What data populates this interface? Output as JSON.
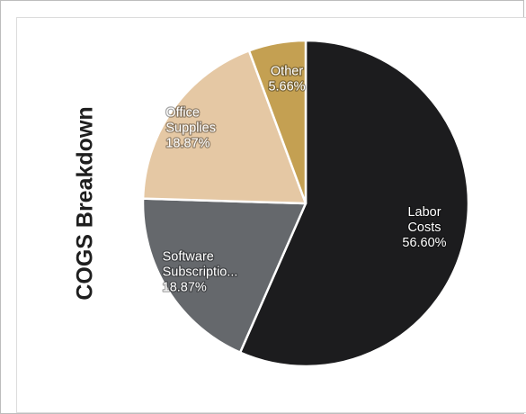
{
  "chart_data": {
    "type": "pie",
    "title": "COGS Breakdown",
    "slices": [
      {
        "label": [
          "Labor",
          "Costs"
        ],
        "value": 56.6,
        "value_label": "56.60%",
        "color": "#1c1c1e"
      },
      {
        "label": [
          "Software",
          "Subscriptio..."
        ],
        "value": 18.87,
        "value_label": "18.87%",
        "color": "#65686c"
      },
      {
        "label": [
          "Office",
          "Supplies"
        ],
        "value": 18.87,
        "value_label": "18.87%",
        "color": "#e5c8a4"
      },
      {
        "label": [
          "Other"
        ],
        "value": 5.66,
        "value_label": "5.66%",
        "color": "#c4a052"
      }
    ],
    "start_angle": "12 o'clock",
    "direction": "clockwise",
    "legend": "none",
    "slice_border_color": "#ffffff"
  }
}
